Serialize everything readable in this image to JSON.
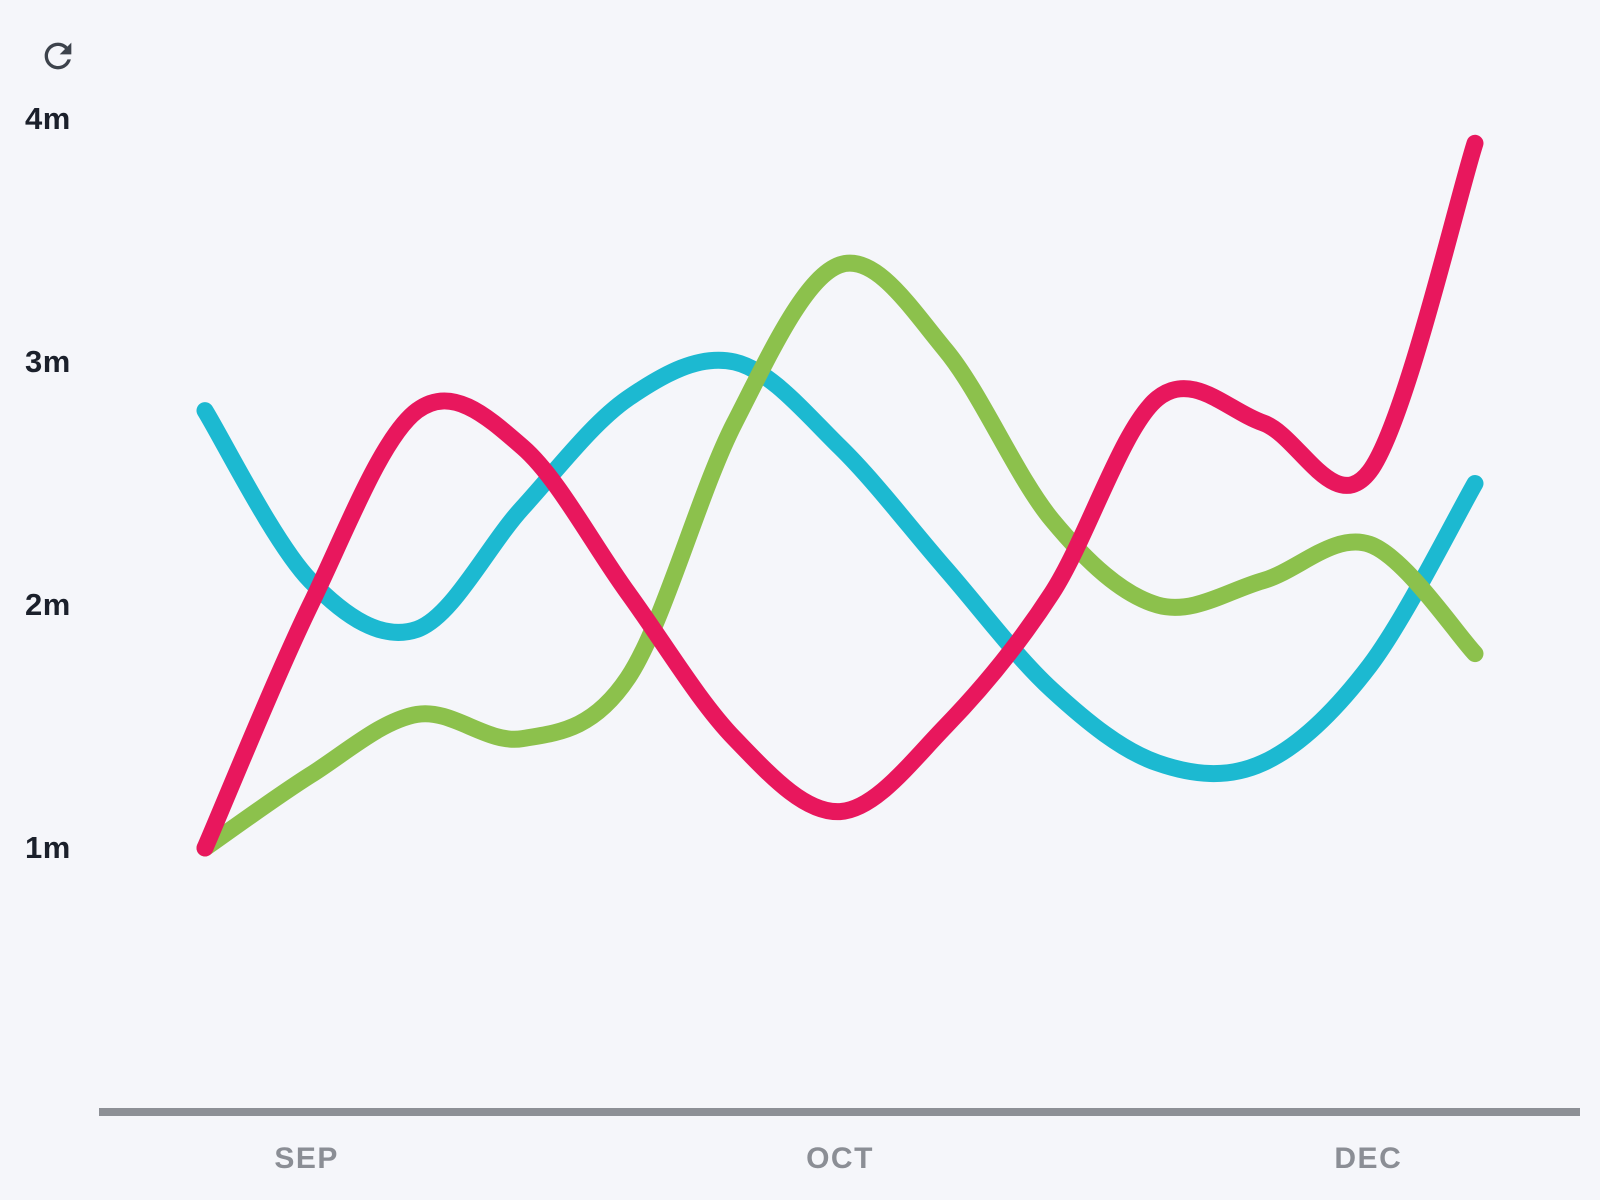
{
  "page": {
    "background": "#f5f6fa"
  },
  "toolbar": {
    "refresh_label": "Refresh",
    "icon_color": "#3d434c"
  },
  "chart_data": {
    "type": "line",
    "title": "",
    "unit_suffix": "m",
    "grid": false,
    "legend": false,
    "y_axis": {
      "labels": [
        "4m",
        "3m",
        "2m",
        "1m"
      ],
      "values": [
        4,
        3,
        2,
        1
      ],
      "min": 1,
      "max": 4,
      "label_color": "#1b202b"
    },
    "x_axis": {
      "labels": [
        "SEP",
        "OCT",
        "DEC"
      ],
      "positions": [
        0.08,
        0.5,
        0.916
      ],
      "label_color": "#8b8e95",
      "axis_line_color": "#8d9096"
    },
    "x_samples": [
      0,
      0.083,
      0.167,
      0.25,
      0.333,
      0.417,
      0.5,
      0.583,
      0.667,
      0.75,
      0.833,
      0.917,
      1
    ],
    "series": [
      {
        "name": "pink",
        "color": "#e8175d",
        "values": [
          1.0,
          2.0,
          2.8,
          2.65,
          2.05,
          1.45,
          1.15,
          1.5,
          2.05,
          2.85,
          2.75,
          2.55,
          3.9
        ]
      },
      {
        "name": "cyan",
        "color": "#1cb9d1",
        "values": [
          2.8,
          2.1,
          1.9,
          2.4,
          2.85,
          3.0,
          2.65,
          2.15,
          1.65,
          1.35,
          1.35,
          1.75,
          2.5
        ]
      },
      {
        "name": "green",
        "color": "#8cc14c",
        "values": [
          1.0,
          1.3,
          1.55,
          1.45,
          1.7,
          2.75,
          3.4,
          3.05,
          2.35,
          2.0,
          2.1,
          2.25,
          1.8
        ]
      }
    ]
  }
}
